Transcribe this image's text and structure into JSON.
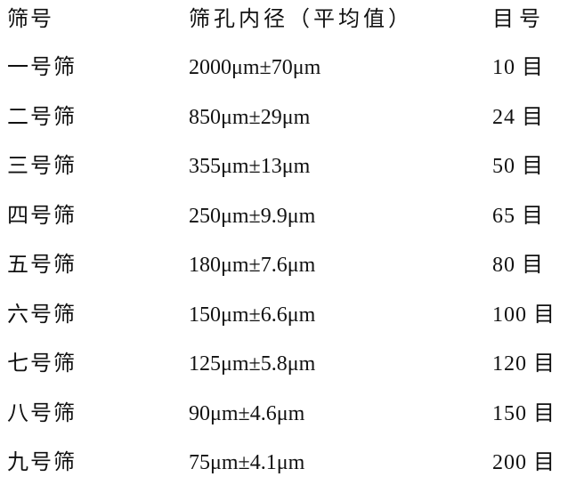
{
  "table": {
    "headers": [
      "筛号",
      "筛孔内径（平均值）",
      "目号"
    ],
    "rows": [
      [
        "一号筛",
        "2000μm±70μm",
        "10 目"
      ],
      [
        "二号筛",
        "850μm±29μm",
        "24 目"
      ],
      [
        "三号筛",
        "355μm±13μm",
        "50 目"
      ],
      [
        "四号筛",
        "250μm±9.9μm",
        "65 目"
      ],
      [
        "五号筛",
        "180μm±7.6μm",
        "80 目"
      ],
      [
        "六号筛",
        "150μm±6.6μm",
        "100 目"
      ],
      [
        "七号筛",
        "125μm±5.8μm",
        "120 目"
      ],
      [
        "八号筛",
        "90μm±4.6μm",
        "150 目"
      ],
      [
        "九号筛",
        "75μm±4.1μm",
        "200 目"
      ]
    ]
  }
}
